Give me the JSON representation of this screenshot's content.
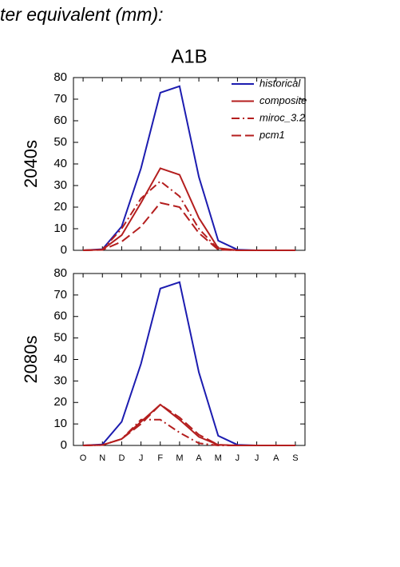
{
  "header": "ter equivalent (mm):",
  "chart_data": [
    {
      "type": "line",
      "title": "A1B",
      "ylabel": "2040s",
      "ylim": [
        0,
        80
      ],
      "yticks": [
        0,
        10,
        20,
        30,
        40,
        50,
        60,
        70,
        80
      ],
      "legend": "upper right",
      "series": [
        {
          "name": "historical",
          "color": "#1c1cb0",
          "dash": "solid",
          "values": [
            0,
            0.5,
            11,
            38,
            73,
            76,
            34,
            4.5,
            0.3,
            0,
            0,
            0
          ]
        },
        {
          "name": "composite",
          "color": "#b41e1e",
          "dash": "solid",
          "values": [
            0,
            0.3,
            7,
            22,
            38,
            35,
            15,
            1,
            0,
            0,
            0,
            0
          ]
        },
        {
          "name": "miroc_3.2",
          "color": "#b41e1e",
          "dash": "dashdot",
          "values": [
            0,
            0.3,
            10,
            24,
            32,
            25,
            10,
            0.5,
            0,
            0,
            0,
            0
          ]
        },
        {
          "name": "pcm1",
          "color": "#b41e1e",
          "dash": "dashed",
          "values": [
            0,
            0.2,
            4,
            11,
            22,
            20,
            8,
            0.3,
            0,
            0,
            0,
            0
          ]
        }
      ]
    },
    {
      "type": "line",
      "ylabel": "2080s",
      "categories": [
        "O",
        "N",
        "D",
        "J",
        "F",
        "M",
        "A",
        "M",
        "J",
        "J",
        "A",
        "S"
      ],
      "ylim": [
        0,
        80
      ],
      "yticks": [
        0,
        10,
        20,
        30,
        40,
        50,
        60,
        70,
        80
      ],
      "series": [
        {
          "color": "#1c1cb0",
          "dash": "solid",
          "values": [
            0,
            0.5,
            11,
            38,
            73,
            76,
            34,
            4.5,
            0.3,
            0,
            0,
            0
          ]
        },
        {
          "color": "#b41e1e",
          "dash": "solid",
          "values": [
            0,
            0.2,
            3,
            11,
            19,
            12,
            4,
            0.3,
            0,
            0,
            0,
            0
          ]
        },
        {
          "color": "#b41e1e",
          "dash": "dashdot",
          "values": [
            0,
            0.2,
            3,
            12,
            12,
            6,
            1,
            0,
            0,
            0,
            0,
            0
          ]
        },
        {
          "color": "#b41e1e",
          "dash": "dashed",
          "values": [
            0,
            0.2,
            3,
            10,
            19,
            13,
            5,
            0.3,
            0,
            0,
            0,
            0
          ]
        }
      ]
    }
  ]
}
